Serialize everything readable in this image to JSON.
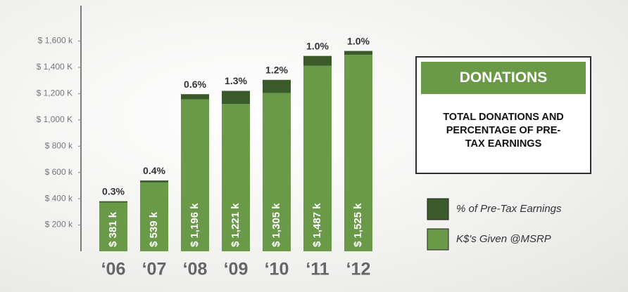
{
  "chart_data": {
    "type": "bar",
    "stacked": true,
    "title": "DONATIONS",
    "subtitle": "TOTAL DONATIONS AND PERCENTAGE OF PRE-TAX EARNINGS",
    "categories": [
      "‘06",
      "‘07",
      "‘08",
      "‘09",
      "‘10",
      "‘11",
      "‘12"
    ],
    "series": [
      {
        "name": "% of Pre-Tax Earnings",
        "color": "#3b5a2a",
        "values": [
          10,
          15,
          40,
          100,
          100,
          75,
          30
        ]
      },
      {
        "name": "K$'s Given @MSRP",
        "color": "#6a9a48",
        "values": [
          371,
          524,
          1156,
          1121,
          1205,
          1412,
          1495
        ]
      }
    ],
    "totals": {
      "values": [
        381,
        539,
        1196,
        1221,
        1305,
        1487,
        1525
      ],
      "value_labels": [
        "$ 381 k",
        "$ 539 k",
        "$ 1,196 k",
        "$ 1,221 k",
        "$ 1,305 k",
        "$ 1,487 k",
        "$ 1,525 k"
      ]
    },
    "percent_labels": {
      "values": [
        0.3,
        0.4,
        0.6,
        1.3,
        1.2,
        1.0,
        1.0
      ],
      "value_labels": [
        "0.3%",
        "0.4%",
        "0.6%",
        "1.3%",
        "1.2%",
        "1.0%",
        "1.0%"
      ]
    },
    "ylim": [
      0,
      1870
    ],
    "yticks": [
      {
        "value": 200,
        "label": "$ 200 k"
      },
      {
        "value": 400,
        "label": "$ 400 k"
      },
      {
        "value": 600,
        "label": "$ 600 k"
      },
      {
        "value": 800,
        "label": "$ 800 k"
      },
      {
        "value": 1000,
        "label": "$ 1,000 K"
      },
      {
        "value": 1200,
        "label": "$ 1,200 K"
      },
      {
        "value": 1400,
        "label": "$ 1,400 K"
      },
      {
        "value": 1600,
        "label": "$ 1,600 k"
      }
    ],
    "grid": false
  }
}
